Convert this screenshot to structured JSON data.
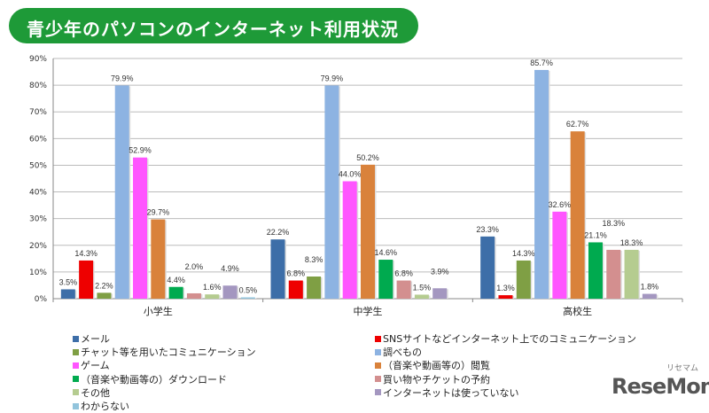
{
  "header": {
    "title": "青少年のパソコンのインターネット利用状況"
  },
  "logo": {
    "text": "ReseMom",
    "ruby": "リセマム"
  },
  "chart_data": {
    "type": "bar",
    "title": "",
    "xlabel": "",
    "ylabel": "",
    "ylim": [
      0,
      90
    ],
    "yticks": [
      "0%",
      "10%",
      "20%",
      "30%",
      "40%",
      "50%",
      "60%",
      "70%",
      "80%",
      "90%"
    ],
    "grid": true,
    "legend": "bottom",
    "categories": [
      "小学生",
      "中学生",
      "高校生"
    ],
    "series": [
      {
        "name": "メール",
        "color": "#3d6ea8",
        "values": [
          3.5,
          22.2,
          23.3
        ]
      },
      {
        "name": "SNSサイトなどインターネット上でのコミュニケーション",
        "color": "#ee0000",
        "values": [
          14.3,
          6.8,
          1.3
        ]
      },
      {
        "name": "チャット等を用いたコミュニケーション",
        "color": "#7f9f44",
        "values": [
          2.2,
          8.3,
          14.3
        ]
      },
      {
        "name": "調べもの",
        "color": "#8db3e2",
        "values": [
          79.9,
          79.9,
          85.7
        ]
      },
      {
        "name": "ゲーム",
        "color": "#ff55ff",
        "values": [
          52.9,
          44.0,
          32.6
        ]
      },
      {
        "name": "（音楽や動画等の）閲覧",
        "color": "#d9823b",
        "values": [
          29.7,
          50.2,
          62.7
        ]
      },
      {
        "name": "（音楽や動画等の）ダウンロード",
        "color": "#00aa4f",
        "values": [
          4.4,
          14.6,
          21.1
        ]
      },
      {
        "name": "買い物やチケットの予約",
        "color": "#d38f8f",
        "values": [
          2.0,
          6.8,
          18.3
        ]
      },
      {
        "name": "その他",
        "color": "#b5cc90",
        "values": [
          1.6,
          1.5,
          18.3
        ]
      },
      {
        "name": "インターネットは使っていない",
        "color": "#a497c0",
        "values": [
          4.9,
          3.9,
          1.8
        ]
      },
      {
        "name": "わからない",
        "color": "#92c4dc",
        "values": [
          0.5,
          null,
          null
        ]
      }
    ]
  }
}
